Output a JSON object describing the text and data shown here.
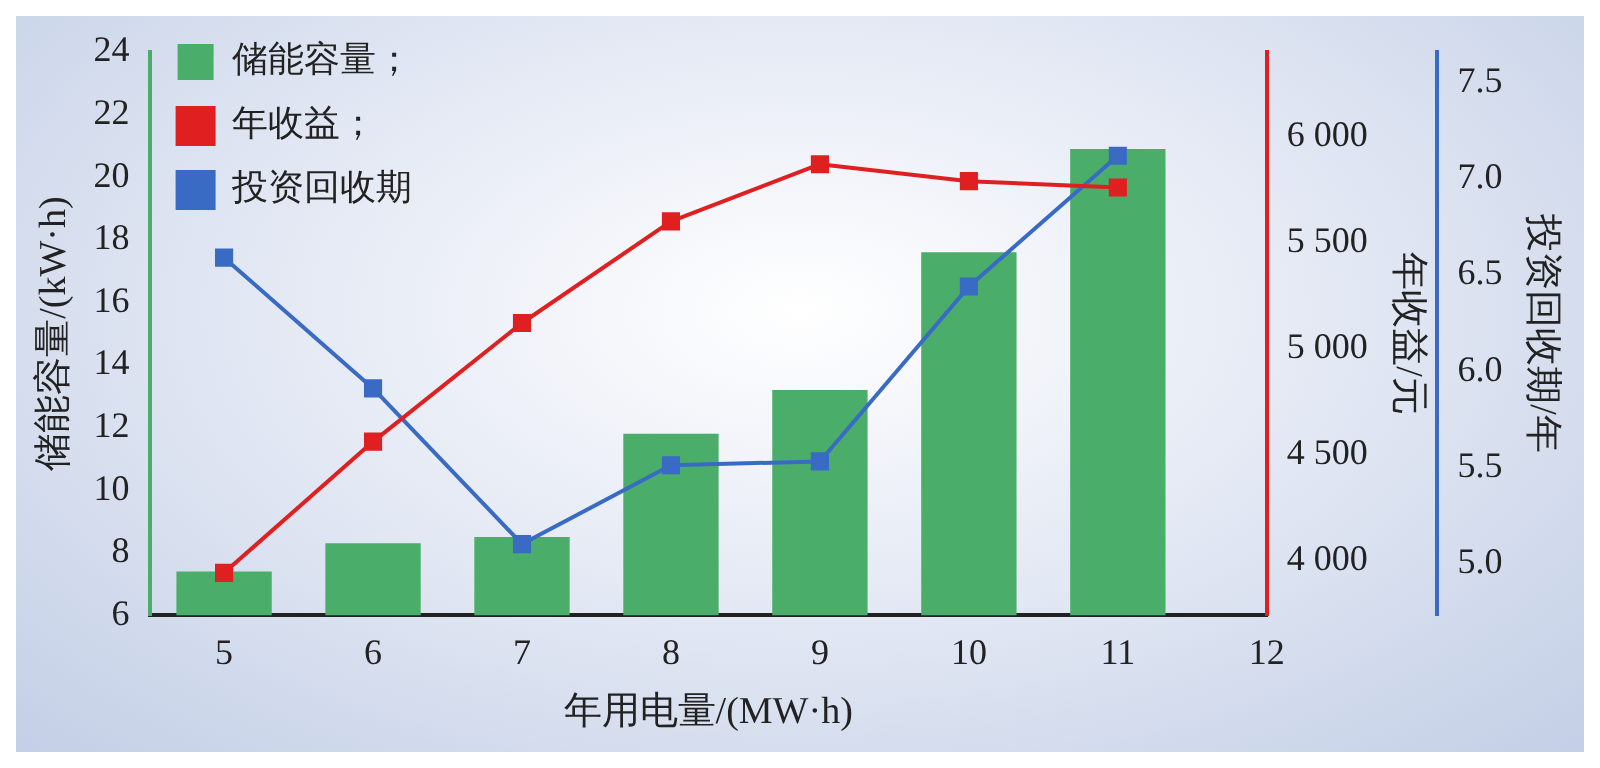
{
  "chart_data": {
    "type": "bar",
    "xlabel": "年用电量/(MW·h)",
    "ylabel": "储能容量/(kW·h)",
    "y2label": "年收益/元",
    "y3label": "投资回收期/年",
    "x": [
      5,
      6,
      7,
      8,
      9,
      10,
      11
    ],
    "xlim": [
      4.5,
      12
    ],
    "xticks": [
      5,
      6,
      7,
      8,
      9,
      10,
      11,
      12
    ],
    "ylim": [
      6,
      24
    ],
    "yticks": [
      6,
      8,
      10,
      12,
      14,
      16,
      18,
      20,
      22,
      24
    ],
    "y2lim": [
      3740,
      6400
    ],
    "y2ticks": [
      {
        "value": 4000,
        "label": "4 000"
      },
      {
        "value": 4500,
        "label": "4 500"
      },
      {
        "value": 5000,
        "label": "5 000"
      },
      {
        "value": 5500,
        "label": "5 500"
      },
      {
        "value": 6000,
        "label": "6 000"
      }
    ],
    "y3lim": [
      4.73,
      7.66
    ],
    "y3ticks": [
      {
        "value": 5,
        "label": "5.0"
      },
      {
        "value": 5.5,
        "label": "5.5"
      },
      {
        "value": 6,
        "label": "6.0"
      },
      {
        "value": 6.5,
        "label": "6.5"
      },
      {
        "value": 7,
        "label": "7.0"
      },
      {
        "value": 7.5,
        "label": "7.5"
      }
    ],
    "legend": "top left",
    "marker": "square",
    "line_style": "solid",
    "grid": false,
    "series": [
      {
        "name": "储能容量；",
        "color": "#4aae6a",
        "values": [
          7.4,
          8.3,
          8.5,
          11.8,
          13.2,
          17.6,
          20.9
        ]
      },
      {
        "name": "年收益；",
        "type": "line",
        "axis": "y2",
        "color": "#e02020",
        "values": [
          3940,
          4560,
          5120,
          5600,
          5870,
          5790,
          5760
        ]
      },
      {
        "name": "投资回收期",
        "type": "line",
        "axis": "y3",
        "color": "#3a6bc4",
        "values": [
          6.59,
          5.91,
          5.1,
          5.51,
          5.53,
          6.44,
          7.12
        ]
      }
    ]
  }
}
